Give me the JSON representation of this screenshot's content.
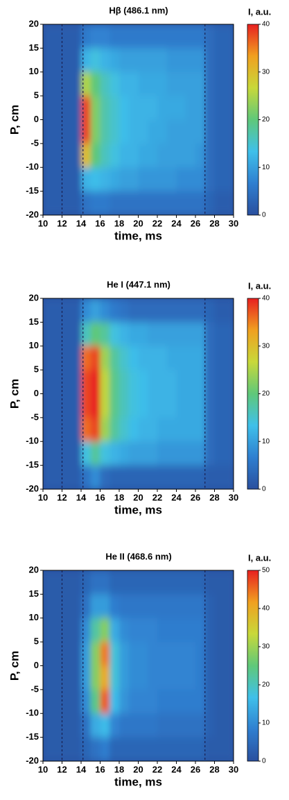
{
  "chart_data": [
    {
      "type": "heatmap",
      "title": "Hβ  (486.1 nm)",
      "x_label": "time, ms",
      "y_label": "P, cm",
      "colorbar_label": "I, a.u.",
      "xbins": [
        10,
        11,
        12,
        13,
        14,
        15,
        16,
        17,
        18,
        19,
        20,
        21,
        22,
        23,
        24,
        25,
        26,
        27,
        28,
        29,
        30
      ],
      "ybins": [
        20,
        15,
        10,
        5,
        0,
        -5,
        -10,
        -15,
        -20
      ],
      "z": [
        [
          2,
          2,
          2,
          2,
          6,
          7,
          7,
          6,
          6,
          6,
          6,
          6,
          6,
          6,
          6,
          6,
          6,
          4,
          3,
          3
        ],
        [
          2,
          2,
          2,
          2,
          12,
          14,
          12,
          11,
          10,
          10,
          10,
          10,
          10,
          9,
          9,
          9,
          9,
          4,
          3,
          3
        ],
        [
          2,
          2,
          2,
          2,
          25,
          20,
          16,
          14,
          12,
          12,
          11,
          11,
          11,
          10,
          10,
          10,
          10,
          4,
          3,
          3
        ],
        [
          2,
          2,
          2,
          2,
          38,
          22,
          17,
          15,
          13,
          12,
          12,
          12,
          11,
          11,
          11,
          10,
          10,
          4,
          3,
          3
        ],
        [
          2,
          2,
          2,
          2,
          38,
          22,
          17,
          15,
          13,
          12,
          12,
          11,
          11,
          10,
          10,
          10,
          10,
          4,
          3,
          3
        ],
        [
          2,
          2,
          2,
          2,
          30,
          20,
          16,
          14,
          12,
          12,
          11,
          11,
          10,
          10,
          10,
          10,
          9,
          4,
          3,
          3
        ],
        [
          2,
          2,
          2,
          2,
          12,
          13,
          12,
          11,
          10,
          10,
          9,
          9,
          9,
          9,
          8,
          8,
          8,
          4,
          3,
          3
        ],
        [
          2,
          2,
          2,
          2,
          5,
          6,
          6,
          5,
          5,
          5,
          5,
          5,
          5,
          5,
          5,
          5,
          5,
          3,
          2,
          2
        ]
      ],
      "xlim": [
        10,
        30
      ],
      "xticks": [
        10,
        12,
        14,
        16,
        18,
        20,
        22,
        24,
        26,
        28,
        30
      ],
      "ylim": [
        -20,
        20
      ],
      "yticks": [
        20,
        15,
        10,
        5,
        0,
        -5,
        -10,
        -15,
        -20
      ],
      "clim": [
        0,
        40
      ],
      "cticks": [
        0,
        10,
        20,
        30,
        40
      ],
      "vlines": [
        12,
        14.2,
        27
      ],
      "colormap": [
        "#2a4f9e",
        "#2f7fd0",
        "#3fc0ea",
        "#5fc87a",
        "#c8d83a",
        "#f0a020",
        "#e82020"
      ]
    },
    {
      "type": "heatmap",
      "title": "He I  (447.1 nm)",
      "x_label": "time, ms",
      "y_label": "P, cm",
      "colorbar_label": "I, a.u.",
      "xbins": [
        10,
        11,
        12,
        13,
        14,
        15,
        16,
        17,
        18,
        19,
        20,
        21,
        22,
        23,
        24,
        25,
        26,
        27,
        28,
        29,
        30
      ],
      "ybins": [
        20,
        15,
        10,
        5,
        0,
        -5,
        -10,
        -15,
        -20
      ],
      "z": [
        [
          2,
          2,
          2,
          2,
          8,
          10,
          8,
          6,
          5,
          4,
          4,
          4,
          4,
          4,
          4,
          4,
          4,
          3,
          2,
          2
        ],
        [
          2,
          2,
          2,
          2,
          16,
          20,
          18,
          14,
          12,
          11,
          11,
          10,
          10,
          10,
          10,
          10,
          10,
          4,
          3,
          3
        ],
        [
          2,
          2,
          2,
          2,
          36,
          38,
          24,
          18,
          15,
          13,
          12,
          12,
          12,
          11,
          11,
          11,
          11,
          4,
          3,
          3
        ],
        [
          2,
          2,
          2,
          2,
          38,
          40,
          26,
          19,
          16,
          14,
          13,
          12,
          12,
          12,
          11,
          11,
          11,
          4,
          3,
          3
        ],
        [
          2,
          2,
          2,
          2,
          38,
          40,
          26,
          19,
          16,
          14,
          13,
          12,
          12,
          12,
          11,
          11,
          11,
          4,
          3,
          3
        ],
        [
          2,
          2,
          2,
          2,
          36,
          38,
          24,
          18,
          15,
          13,
          12,
          12,
          11,
          11,
          11,
          11,
          11,
          4,
          3,
          3
        ],
        [
          2,
          2,
          2,
          2,
          14,
          18,
          14,
          12,
          11,
          10,
          10,
          10,
          9,
          9,
          9,
          9,
          9,
          4,
          3,
          3
        ],
        [
          2,
          2,
          2,
          2,
          5,
          8,
          4,
          3,
          3,
          3,
          3,
          3,
          3,
          3,
          3,
          3,
          3,
          2,
          2,
          2
        ]
      ],
      "xlim": [
        10,
        30
      ],
      "xticks": [
        10,
        12,
        14,
        16,
        18,
        20,
        22,
        24,
        26,
        28,
        30
      ],
      "ylim": [
        -20,
        20
      ],
      "yticks": [
        20,
        15,
        10,
        5,
        0,
        -5,
        -10,
        -15,
        -20
      ],
      "clim": [
        0,
        40
      ],
      "cticks": [
        0,
        10,
        20,
        30,
        40
      ],
      "vlines": [
        12,
        14.2,
        27
      ],
      "colormap": [
        "#2a4f9e",
        "#2f7fd0",
        "#3fc0ea",
        "#5fc87a",
        "#c8d83a",
        "#f0a020",
        "#e82020"
      ]
    },
    {
      "type": "heatmap",
      "title": "He II  (468.6 nm)",
      "x_label": "time, ms",
      "y_label": "P, cm",
      "colorbar_label": "I, a.u.",
      "xbins": [
        10,
        11,
        12,
        13,
        14,
        15,
        16,
        17,
        18,
        19,
        20,
        21,
        22,
        23,
        24,
        25,
        26,
        27,
        28,
        29,
        30
      ],
      "ybins": [
        20,
        15,
        10,
        5,
        0,
        -5,
        -10,
        -15,
        -20
      ],
      "z": [
        [
          2,
          2,
          2,
          2,
          4,
          6,
          6,
          4,
          4,
          4,
          4,
          4,
          4,
          4,
          4,
          4,
          4,
          2,
          2,
          2
        ],
        [
          2,
          2,
          2,
          2,
          6,
          12,
          12,
          8,
          7,
          7,
          7,
          7,
          7,
          7,
          7,
          7,
          7,
          3,
          2,
          2
        ],
        [
          2,
          2,
          2,
          2,
          10,
          22,
          28,
          14,
          10,
          9,
          9,
          9,
          8,
          8,
          8,
          8,
          8,
          3,
          2,
          2
        ],
        [
          2,
          2,
          2,
          2,
          12,
          28,
          44,
          18,
          12,
          10,
          10,
          9,
          9,
          9,
          9,
          9,
          8,
          3,
          2,
          2
        ],
        [
          2,
          2,
          2,
          2,
          12,
          28,
          40,
          18,
          12,
          10,
          10,
          9,
          9,
          9,
          9,
          9,
          8,
          3,
          2,
          2
        ],
        [
          2,
          2,
          2,
          2,
          10,
          24,
          46,
          16,
          11,
          9,
          9,
          9,
          8,
          8,
          8,
          8,
          8,
          3,
          2,
          2
        ],
        [
          2,
          2,
          2,
          2,
          6,
          14,
          16,
          9,
          7,
          7,
          7,
          7,
          6,
          6,
          6,
          6,
          6,
          3,
          2,
          2
        ],
        [
          2,
          2,
          2,
          2,
          4,
          6,
          8,
          4,
          4,
          4,
          4,
          4,
          4,
          4,
          4,
          4,
          4,
          2,
          2,
          2
        ]
      ],
      "xlim": [
        10,
        30
      ],
      "xticks": [
        10,
        12,
        14,
        16,
        18,
        20,
        22,
        24,
        26,
        28,
        30
      ],
      "ylim": [
        -20,
        20
      ],
      "yticks": [
        20,
        15,
        10,
        5,
        0,
        -5,
        -10,
        -15,
        -20
      ],
      "clim": [
        0,
        50
      ],
      "cticks": [
        0,
        10,
        20,
        30,
        40,
        50
      ],
      "vlines": [
        12,
        14.2,
        27
      ],
      "colormap": [
        "#2a4f9e",
        "#2f7fd0",
        "#3fc0ea",
        "#5fc87a",
        "#c8d83a",
        "#f0a020",
        "#e82020"
      ]
    }
  ]
}
